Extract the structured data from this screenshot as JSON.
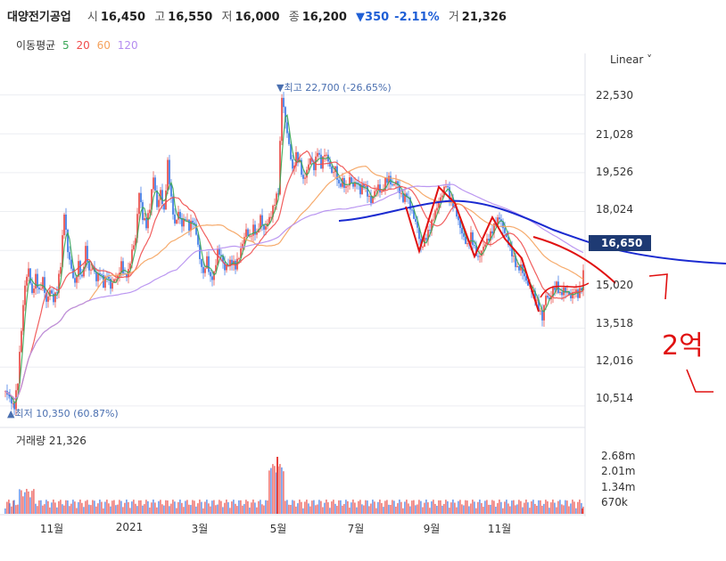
{
  "header": {
    "name": "대양전기공업",
    "open_label": "시",
    "open": "16,450",
    "high_label": "고",
    "high": "16,550",
    "low_label": "저",
    "low": "16,000",
    "close_label": "종",
    "close": "16,200",
    "change": "▼350",
    "change_pct": "-2.11%",
    "volume_label": "거",
    "volume": "21,326"
  },
  "ma_legend": {
    "label": "이동평균",
    "items": [
      "5",
      "20",
      "60",
      "120"
    ]
  },
  "colors": {
    "ma5": "#3aa757",
    "ma20": "#f04c4c",
    "ma60": "#f5a25d",
    "ma120": "#b48cf0",
    "up": "#e8413c",
    "down": "#2f6fe4",
    "annot_red": "#e01010",
    "annot_blue": "#1a2ad0",
    "label_box": "#1e3a73"
  },
  "scale_label": "Linear ˅",
  "price_max_label": "▼최고 22,700 (-26.65%)",
  "price_min_label": "▲최저 10,350 (60.87%)",
  "current_price": "16,650",
  "partial_tick": "15,020",
  "volume_title": "거래량 21,326",
  "handwriting": "2억",
  "chart_data": {
    "type": "candlestick",
    "y_ticks": [
      "22,530",
      "21,028",
      "19,526",
      "18,024",
      "13,518",
      "12,016",
      "10,514"
    ],
    "ylim": [
      10200,
      23100
    ],
    "x_ticks": [
      "11월",
      "2021",
      "3월",
      "5월",
      "7월",
      "9월",
      "11월"
    ],
    "volume_ticks": [
      "2.68m",
      "2.01m",
      "1.34m",
      "670k"
    ],
    "close_path": [
      [
        0,
        11100
      ],
      [
        5,
        10800
      ],
      [
        10,
        10500
      ],
      [
        14,
        11500
      ],
      [
        18,
        13500
      ],
      [
        22,
        15200
      ],
      [
        26,
        15800
      ],
      [
        30,
        14800
      ],
      [
        34,
        15500
      ],
      [
        38,
        14900
      ],
      [
        42,
        15400
      ],
      [
        46,
        14500
      ],
      [
        50,
        15000
      ],
      [
        54,
        14600
      ],
      [
        58,
        15000
      ],
      [
        62,
        16000
      ],
      [
        66,
        18000
      ],
      [
        70,
        16500
      ],
      [
        74,
        15800
      ],
      [
        78,
        15200
      ],
      [
        82,
        16000
      ],
      [
        86,
        15400
      ],
      [
        90,
        16600
      ],
      [
        94,
        15700
      ],
      [
        98,
        15900
      ],
      [
        102,
        15400
      ],
      [
        106,
        15700
      ],
      [
        110,
        15200
      ],
      [
        114,
        15600
      ],
      [
        118,
        15100
      ],
      [
        122,
        15400
      ],
      [
        126,
        15500
      ],
      [
        130,
        16000
      ],
      [
        134,
        15500
      ],
      [
        138,
        15700
      ],
      [
        142,
        16500
      ],
      [
        146,
        17000
      ],
      [
        150,
        18800
      ],
      [
        154,
        17800
      ],
      [
        158,
        17500
      ],
      [
        162,
        18200
      ],
      [
        166,
        19400
      ],
      [
        170,
        18200
      ],
      [
        174,
        18800
      ],
      [
        178,
        18000
      ],
      [
        182,
        19900
      ],
      [
        186,
        18500
      ],
      [
        190,
        17500
      ],
      [
        194,
        18000
      ],
      [
        198,
        17500
      ],
      [
        202,
        17800
      ],
      [
        206,
        17400
      ],
      [
        210,
        17700
      ],
      [
        214,
        17200
      ],
      [
        218,
        16200
      ],
      [
        222,
        15600
      ],
      [
        226,
        16200
      ],
      [
        230,
        15400
      ],
      [
        234,
        15600
      ],
      [
        238,
        16500
      ],
      [
        242,
        16300
      ],
      [
        246,
        15800
      ],
      [
        250,
        16000
      ],
      [
        254,
        16100
      ],
      [
        258,
        15900
      ],
      [
        262,
        16300
      ],
      [
        266,
        16800
      ],
      [
        270,
        17300
      ],
      [
        274,
        17000
      ],
      [
        278,
        17400
      ],
      [
        282,
        17100
      ],
      [
        286,
        17800
      ],
      [
        290,
        17300
      ],
      [
        294,
        17600
      ],
      [
        298,
        17900
      ],
      [
        302,
        18400
      ],
      [
        306,
        18800
      ],
      [
        310,
        22500
      ],
      [
        314,
        21500
      ],
      [
        318,
        20600
      ],
      [
        322,
        19600
      ],
      [
        326,
        20200
      ],
      [
        330,
        19900
      ],
      [
        334,
        19200
      ],
      [
        338,
        19600
      ],
      [
        342,
        20100
      ],
      [
        346,
        19700
      ],
      [
        350,
        20400
      ],
      [
        354,
        19800
      ],
      [
        358,
        20300
      ],
      [
        362,
        20000
      ],
      [
        366,
        19500
      ],
      [
        370,
        19700
      ],
      [
        374,
        19000
      ],
      [
        378,
        19200
      ],
      [
        382,
        18900
      ],
      [
        386,
        19300
      ],
      [
        390,
        19000
      ],
      [
        394,
        19200
      ],
      [
        398,
        18800
      ],
      [
        402,
        19100
      ],
      [
        406,
        18700
      ],
      [
        410,
        18400
      ],
      [
        414,
        18800
      ],
      [
        418,
        19000
      ],
      [
        422,
        18700
      ],
      [
        426,
        19200
      ],
      [
        430,
        19300
      ],
      [
        434,
        19000
      ],
      [
        438,
        19200
      ],
      [
        442,
        18800
      ],
      [
        446,
        18500
      ],
      [
        450,
        18700
      ],
      [
        454,
        18200
      ],
      [
        458,
        17800
      ],
      [
        462,
        17400
      ],
      [
        466,
        16600
      ],
      [
        470,
        16900
      ],
      [
        474,
        17200
      ],
      [
        478,
        17600
      ],
      [
        482,
        18000
      ],
      [
        486,
        18400
      ],
      [
        490,
        18700
      ],
      [
        494,
        19100
      ],
      [
        498,
        18600
      ],
      [
        502,
        18300
      ],
      [
        506,
        17900
      ],
      [
        510,
        17400
      ],
      [
        514,
        17000
      ],
      [
        518,
        16700
      ],
      [
        522,
        17100
      ],
      [
        526,
        16600
      ],
      [
        530,
        16200
      ],
      [
        534,
        16500
      ],
      [
        538,
        16800
      ],
      [
        542,
        17000
      ],
      [
        546,
        17300
      ],
      [
        550,
        17600
      ],
      [
        554,
        17800
      ],
      [
        558,
        17400
      ],
      [
        562,
        17000
      ],
      [
        566,
        16600
      ],
      [
        570,
        16200
      ],
      [
        574,
        15800
      ],
      [
        578,
        15900
      ],
      [
        582,
        15500
      ],
      [
        586,
        15200
      ],
      [
        590,
        15000
      ],
      [
        594,
        14700
      ],
      [
        598,
        14300
      ],
      [
        602,
        13900
      ],
      [
        606,
        14800
      ],
      [
        610,
        14600
      ],
      [
        614,
        15000
      ],
      [
        618,
        15200
      ],
      [
        622,
        14800
      ],
      [
        626,
        15000
      ],
      [
        630,
        14900
      ],
      [
        634,
        14700
      ],
      [
        638,
        15000
      ],
      [
        642,
        14800
      ],
      [
        646,
        15100
      ],
      [
        650,
        16200
      ]
    ],
    "ma_series": [
      {
        "name": "5",
        "color": "#3aa757"
      },
      {
        "name": "20",
        "color": "#f04c4c"
      },
      {
        "name": "60",
        "color": "#f5a25d"
      },
      {
        "name": "120",
        "color": "#b48cf0"
      }
    ]
  }
}
